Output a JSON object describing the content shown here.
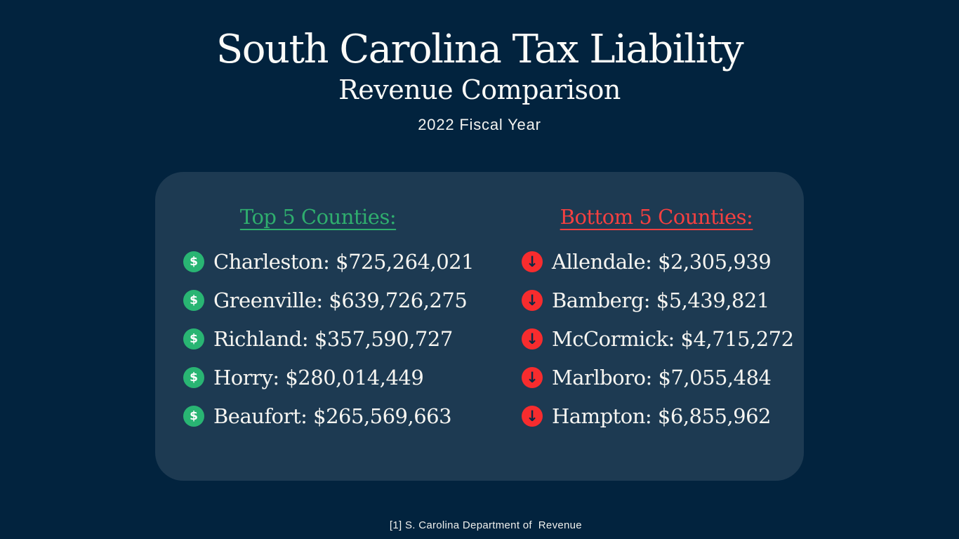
{
  "header": {
    "title": "South Carolina Tax Liability",
    "subtitle": "Revenue Comparison",
    "period": "2022 Fiscal Year"
  },
  "card": {
    "top": {
      "heading": "Top 5 Counties:",
      "icon": "dollar-circle-icon",
      "items": [
        {
          "label": "Charleston: $725,264,021"
        },
        {
          "label": "Greenville: $639,726,275"
        },
        {
          "label": "Richland: $357,590,727"
        },
        {
          "label": "Horry: $280,014,449"
        },
        {
          "label": "Beaufort: $265,569,663"
        }
      ]
    },
    "bottom": {
      "heading": "Bottom 5 Counties:",
      "icon": "arrow-down-circle-icon",
      "items": [
        {
          "label": "Allendale: $2,305,939"
        },
        {
          "label": "Bamberg: $5,439,821"
        },
        {
          "label": "McCormick: $4,715,272"
        },
        {
          "label": "Marlboro: $7,055,484"
        },
        {
          "label": "Hampton: $6,855,962"
        }
      ]
    }
  },
  "icons": {
    "dollar_glyph": "$",
    "down_arrow_glyph": "↓"
  },
  "footer": {
    "source": "[1] S. Carolina Department of  Revenue"
  },
  "colors": {
    "background": "#02233E",
    "card": "#1D3A52",
    "title_text": "#FBFBF8",
    "top_accent": "#2FAE6E",
    "bottom_accent": "#F54040",
    "dollar_icon_bg": "#29B573",
    "arrow_icon_bg": "#F72C2E",
    "arrow_glyph": "#0B2A44"
  },
  "chart_data": {
    "type": "table",
    "title": "South Carolina Tax Liability",
    "subtitle": "Revenue Comparison",
    "period": "2022 Fiscal Year",
    "groups": [
      {
        "name": "Top 5 Counties",
        "counties": [
          "Charleston",
          "Greenville",
          "Richland",
          "Horry",
          "Beaufort"
        ],
        "values": [
          725264021,
          639726275,
          357590727,
          280014449,
          265569663
        ]
      },
      {
        "name": "Bottom 5 Counties",
        "counties": [
          "Allendale",
          "Bamberg",
          "McCormick",
          "Marlboro",
          "Hampton"
        ],
        "values": [
          2305939,
          5439821,
          4715272,
          7055484,
          6855962
        ]
      }
    ],
    "source": "[1] S. Carolina Department of Revenue"
  }
}
